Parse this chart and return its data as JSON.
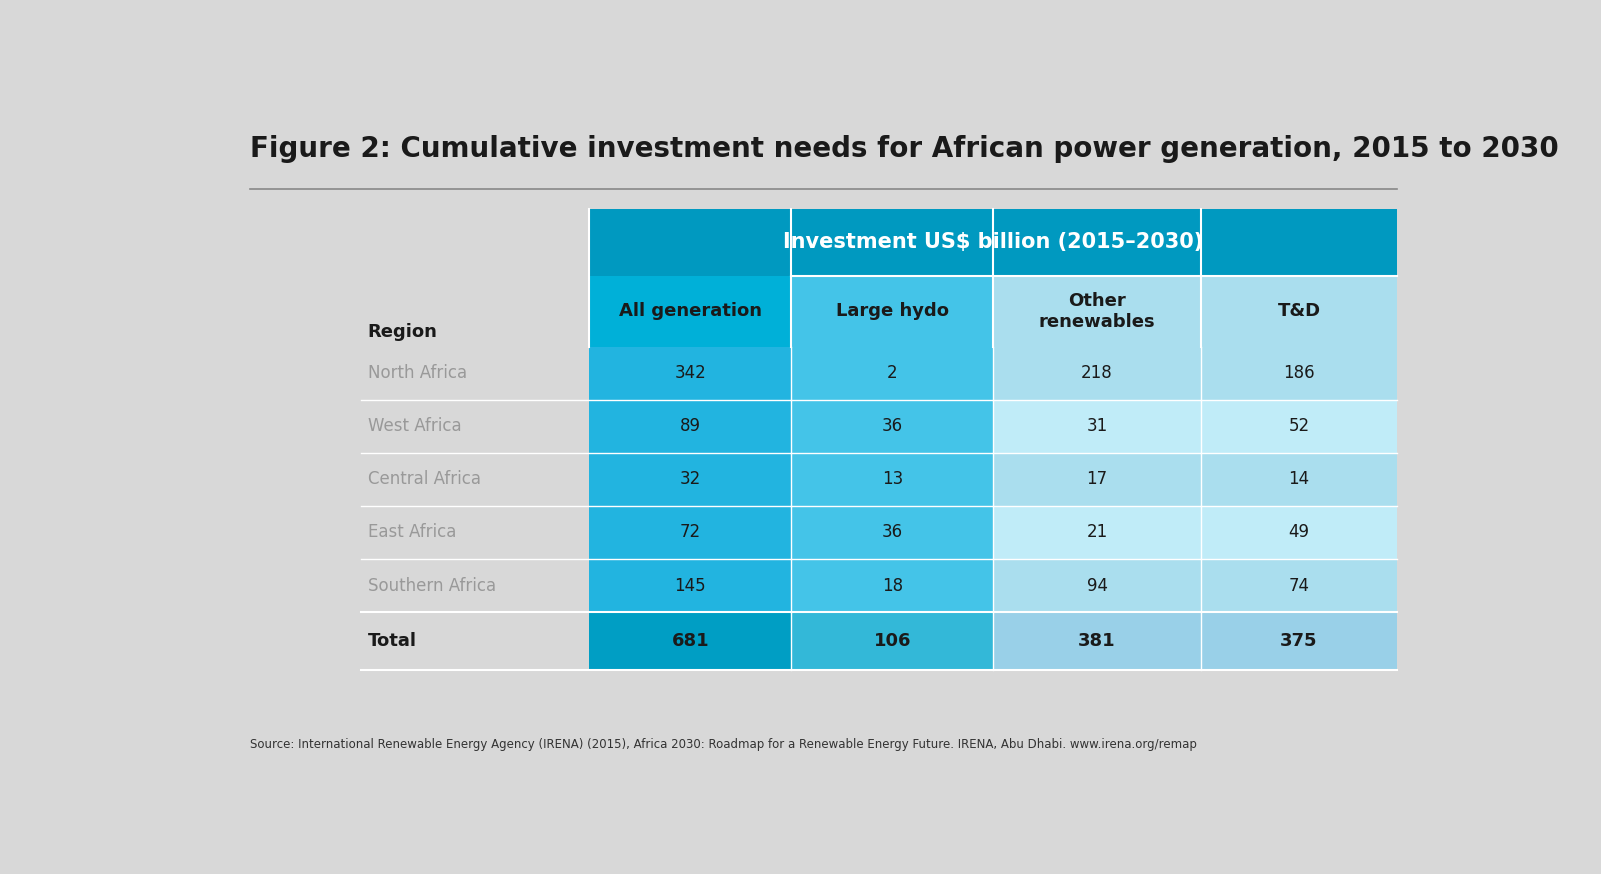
{
  "title": "Figure 2: Cumulative investment needs for African power generation, 2015 to 2030",
  "source_text": "Source: International Renewable Energy Agency (IRENA) (2015), Africa 2030: Roadmap for a Renewable Energy Future. IRENA, Abu Dhabi. www.irena.org/remap",
  "header_main": "Investment US$ billion (2015–2030)",
  "col_headers": [
    "All generation",
    "Large hydo",
    "Other\nrenewables",
    "T&D"
  ],
  "row_label_header": "Region",
  "rows": [
    {
      "region": "North Africa",
      "values": [
        342,
        2,
        218,
        186
      ]
    },
    {
      "region": "West Africa",
      "values": [
        89,
        36,
        31,
        52
      ]
    },
    {
      "region": "Central Africa",
      "values": [
        32,
        13,
        17,
        14
      ]
    },
    {
      "region": "East Africa",
      "values": [
        72,
        36,
        21,
        49
      ]
    },
    {
      "region": "Southern Africa",
      "values": [
        145,
        18,
        94,
        74
      ]
    }
  ],
  "total_row": {
    "region": "Total",
    "values": [
      681,
      106,
      381,
      375
    ]
  },
  "bg_color": "#d8d8d8",
  "header_dark_blue": "#0099c0",
  "col1_blue": "#00b0d8",
  "col2_blue": "#44c4e8",
  "col34_light": "#aadeee",
  "region_label_color": "#999999",
  "value_color_dark": "#1a1a1a",
  "title_color": "#1a1a1a",
  "row_colors": [
    [
      "#22b4e0",
      "#44c4e8",
      "#aadeee"
    ],
    [
      "#22b4e0",
      "#44c4e8",
      "#c0ecf8"
    ],
    [
      "#22b4e0",
      "#44c4e8",
      "#aadeee"
    ],
    [
      "#22b4e0",
      "#44c4e8",
      "#c0ecf8"
    ],
    [
      "#22b4e0",
      "#44c4e8",
      "#aadeee"
    ]
  ],
  "total_col1": "#009ec4",
  "total_col2": "#33b8d8",
  "total_col34": "#99d0e8"
}
